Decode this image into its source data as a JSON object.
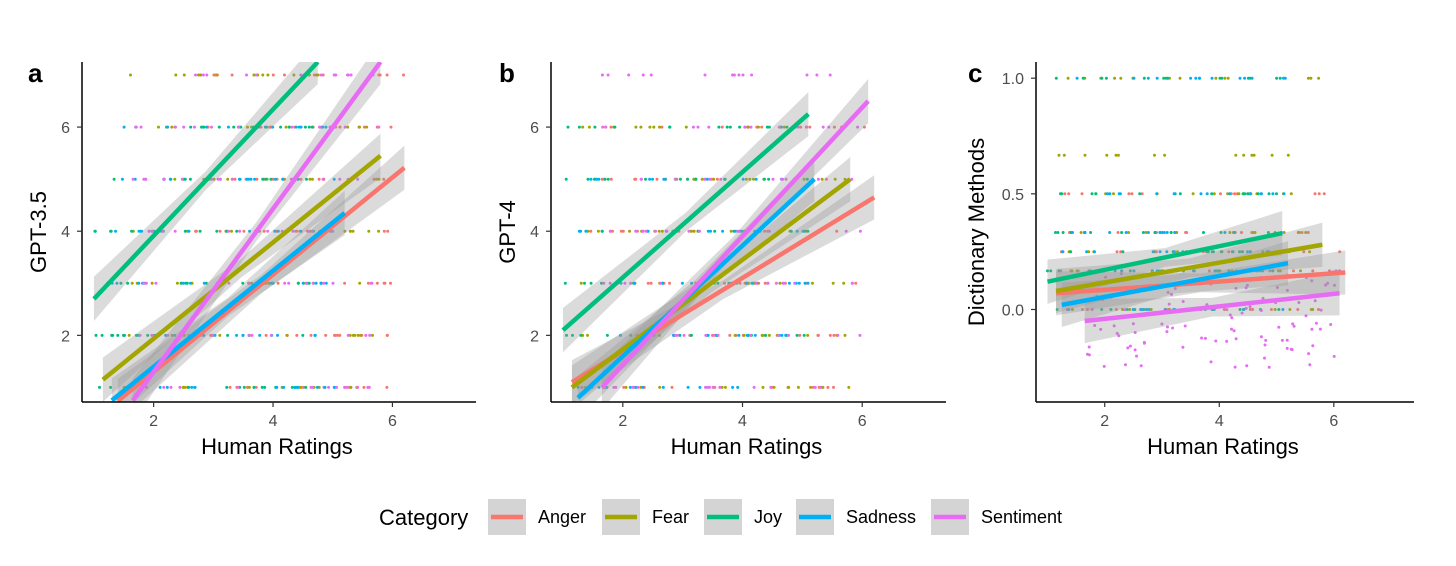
{
  "legend": {
    "title": "Category",
    "entries": [
      {
        "name": "Anger",
        "color": "#F8766D"
      },
      {
        "name": "Fear",
        "color": "#A3A500"
      },
      {
        "name": "Joy",
        "color": "#00BF7D"
      },
      {
        "name": "Sadness",
        "color": "#00B0F6"
      },
      {
        "name": "Sentiment",
        "color": "#E76BF3"
      }
    ]
  },
  "chart_data": [
    {
      "type": "scatter",
      "panel_tag": "a",
      "xlabel": "Human Ratings",
      "ylabel": "GPT-3.5",
      "xlim": [
        0.8,
        7.4
      ],
      "ylim": [
        0.72,
        7.25
      ],
      "x_ticks": [
        2,
        4,
        6
      ],
      "y_ticks": [
        2,
        4,
        6
      ],
      "series": [
        {
          "name": "Anger",
          "fit": [
            [
              1.4,
              0.74
            ],
            [
              6.2,
              5.22
            ]
          ],
          "points": {
            "y_levels": [
              1,
              2,
              3,
              4,
              5,
              6,
              7
            ],
            "x_range": [
              2.5,
              6.2
            ]
          }
        },
        {
          "name": "Fear",
          "fit": [
            [
              1.15,
              1.15
            ],
            [
              5.8,
              5.45
            ]
          ],
          "points": {
            "y_levels": [
              1,
              2,
              3,
              4,
              5,
              6,
              7
            ],
            "x_range": [
              1.5,
              5.8
            ]
          }
        },
        {
          "name": "Joy",
          "fit": [
            [
              1.0,
              2.7
            ],
            [
              4.75,
              7.25
            ]
          ],
          "points": {
            "y_levels": [
              1,
              2,
              3,
              4,
              5,
              6
            ],
            "x_range": [
              1.0,
              4.7
            ]
          }
        },
        {
          "name": "Sadness",
          "fit": [
            [
              1.3,
              0.75
            ],
            [
              5.2,
              4.35
            ]
          ],
          "points": {
            "y_levels": [
              1,
              2,
              3,
              4,
              5,
              6
            ],
            "x_range": [
              1.3,
              5.2
            ]
          }
        },
        {
          "name": "Sentiment",
          "fit": [
            [
              1.65,
              0.75
            ],
            [
              5.8,
              7.25
            ]
          ],
          "points": {
            "y_levels": [
              1,
              2,
              3,
              4,
              5,
              6,
              7
            ],
            "x_range": [
              1.65,
              5.8
            ]
          }
        }
      ]
    },
    {
      "type": "scatter",
      "panel_tag": "b",
      "xlabel": "Human Ratings",
      "ylabel": "GPT-4",
      "xlim": [
        0.8,
        7.4
      ],
      "ylim": [
        0.72,
        7.25
      ],
      "x_ticks": [
        2,
        4,
        6
      ],
      "y_ticks": [
        2,
        4,
        6
      ],
      "series": [
        {
          "name": "Anger",
          "fit": [
            [
              1.15,
              1.1
            ],
            [
              6.2,
              4.65
            ]
          ],
          "points": {
            "y_levels": [
              1,
              2,
              3,
              4,
              5,
              6
            ],
            "x_range": [
              1.2,
              6.2
            ]
          }
        },
        {
          "name": "Fear",
          "fit": [
            [
              1.15,
              1.0
            ],
            [
              5.8,
              5.0
            ]
          ],
          "points": {
            "y_levels": [
              1,
              2,
              3,
              4,
              5,
              6
            ],
            "x_range": [
              1.2,
              5.8
            ]
          }
        },
        {
          "name": "Joy",
          "fit": [
            [
              1.0,
              2.1
            ],
            [
              5.1,
              6.25
            ]
          ],
          "points": {
            "y_levels": [
              2,
              3,
              4,
              5,
              6
            ],
            "x_range": [
              1.0,
              5.1
            ]
          }
        },
        {
          "name": "Sadness",
          "fit": [
            [
              1.25,
              0.8
            ],
            [
              5.2,
              5.0
            ]
          ],
          "points": {
            "y_levels": [
              1,
              2,
              3,
              4,
              5
            ],
            "x_range": [
              1.25,
              5.2
            ]
          }
        },
        {
          "name": "Sentiment",
          "fit": [
            [
              1.65,
              1.0
            ],
            [
              6.1,
              6.5
            ]
          ],
          "points": {
            "y_levels": [
              1,
              2,
              3,
              4,
              5,
              6,
              7
            ],
            "x_range": [
              1.65,
              6.1
            ]
          }
        }
      ]
    },
    {
      "type": "scatter",
      "panel_tag": "c",
      "xlabel": "Human Ratings",
      "ylabel": "Dictionary Methods",
      "xlim": [
        0.8,
        7.4
      ],
      "ylim": [
        -0.4,
        1.07
      ],
      "x_ticks": [
        2,
        4,
        6
      ],
      "y_ticks": [
        0.0,
        0.5,
        1.0
      ],
      "y_tick_labels": [
        "0.0",
        "0.5",
        "1.0"
      ],
      "series": [
        {
          "name": "Anger",
          "fit": [
            [
              1.15,
              0.07
            ],
            [
              6.2,
              0.16
            ]
          ],
          "points": {
            "y_levels": [
              0,
              0.167,
              0.25,
              0.333,
              0.5
            ],
            "x_range": [
              1.2,
              6.2
            ]
          }
        },
        {
          "name": "Fear",
          "fit": [
            [
              1.15,
              0.08
            ],
            [
              5.8,
              0.28
            ]
          ],
          "points": {
            "y_levels": [
              0,
              0.167,
              0.25,
              0.333,
              0.5,
              0.667,
              1.0
            ],
            "x_range": [
              1.2,
              5.8
            ]
          }
        },
        {
          "name": "Joy",
          "fit": [
            [
              1.0,
              0.12
            ],
            [
              5.1,
              0.33
            ]
          ],
          "points": {
            "y_levels": [
              0,
              0.167,
              0.25,
              0.333,
              0.5,
              1.0
            ],
            "x_range": [
              1.0,
              5.1
            ]
          }
        },
        {
          "name": "Sadness",
          "fit": [
            [
              1.25,
              0.02
            ],
            [
              5.2,
              0.2
            ]
          ],
          "points": {
            "y_levels": [
              0,
              0.167,
              0.25,
              0.333,
              0.5,
              1.0
            ],
            "x_range": [
              1.25,
              5.2
            ]
          }
        },
        {
          "name": "Sentiment",
          "fit": [
            [
              1.65,
              -0.05
            ],
            [
              6.1,
              0.07
            ]
          ],
          "points": {
            "y_levels": [
              0,
              0.05,
              -0.1,
              0.2,
              -0.2
            ],
            "x_range": [
              1.65,
              6.1
            ]
          }
        }
      ]
    }
  ]
}
